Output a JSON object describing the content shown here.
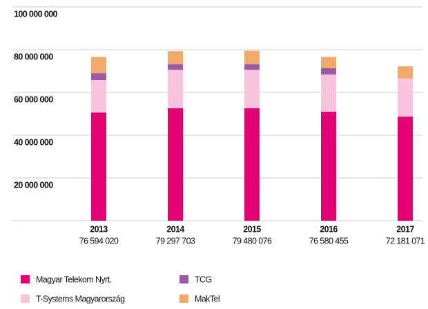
{
  "chart_data": {
    "type": "stacked_bar",
    "categories": [
      "2013",
      "2014",
      "2015",
      "2016",
      "2017"
    ],
    "total_labels": [
      "76 594 020",
      "79 297 703",
      "79 480 076",
      "76 580 455",
      "72 181 071"
    ],
    "series": [
      {
        "name": "Magyar Telekom Nyrt.",
        "color": "#e20074",
        "values": [
          50600000,
          52600000,
          52600000,
          51000000,
          48700000
        ]
      },
      {
        "name": "T-Systems Magyarország",
        "color": "#f8c3dd",
        "values": [
          15200000,
          18000000,
          18000000,
          17400000,
          17800000
        ]
      },
      {
        "name": "TCG",
        "color": "#9c5aa6",
        "values": [
          3200000,
          2600000,
          2600000,
          2900000,
          0
        ]
      },
      {
        "name": "MakTel",
        "color": "#f2aa6c",
        "values": [
          7600000,
          6100000,
          6300000,
          5300000,
          5700000
        ]
      }
    ],
    "ylim": [
      0,
      100000000
    ],
    "yticks": [
      {
        "value": 20000000,
        "label": "20 000 000"
      },
      {
        "value": 40000000,
        "label": "40 000 000"
      },
      {
        "value": 60000000,
        "label": "60 000 000"
      },
      {
        "value": 80000000,
        "label": "80 000 000"
      },
      {
        "value": 100000000,
        "label": "100 000 000"
      }
    ],
    "grid": true
  }
}
